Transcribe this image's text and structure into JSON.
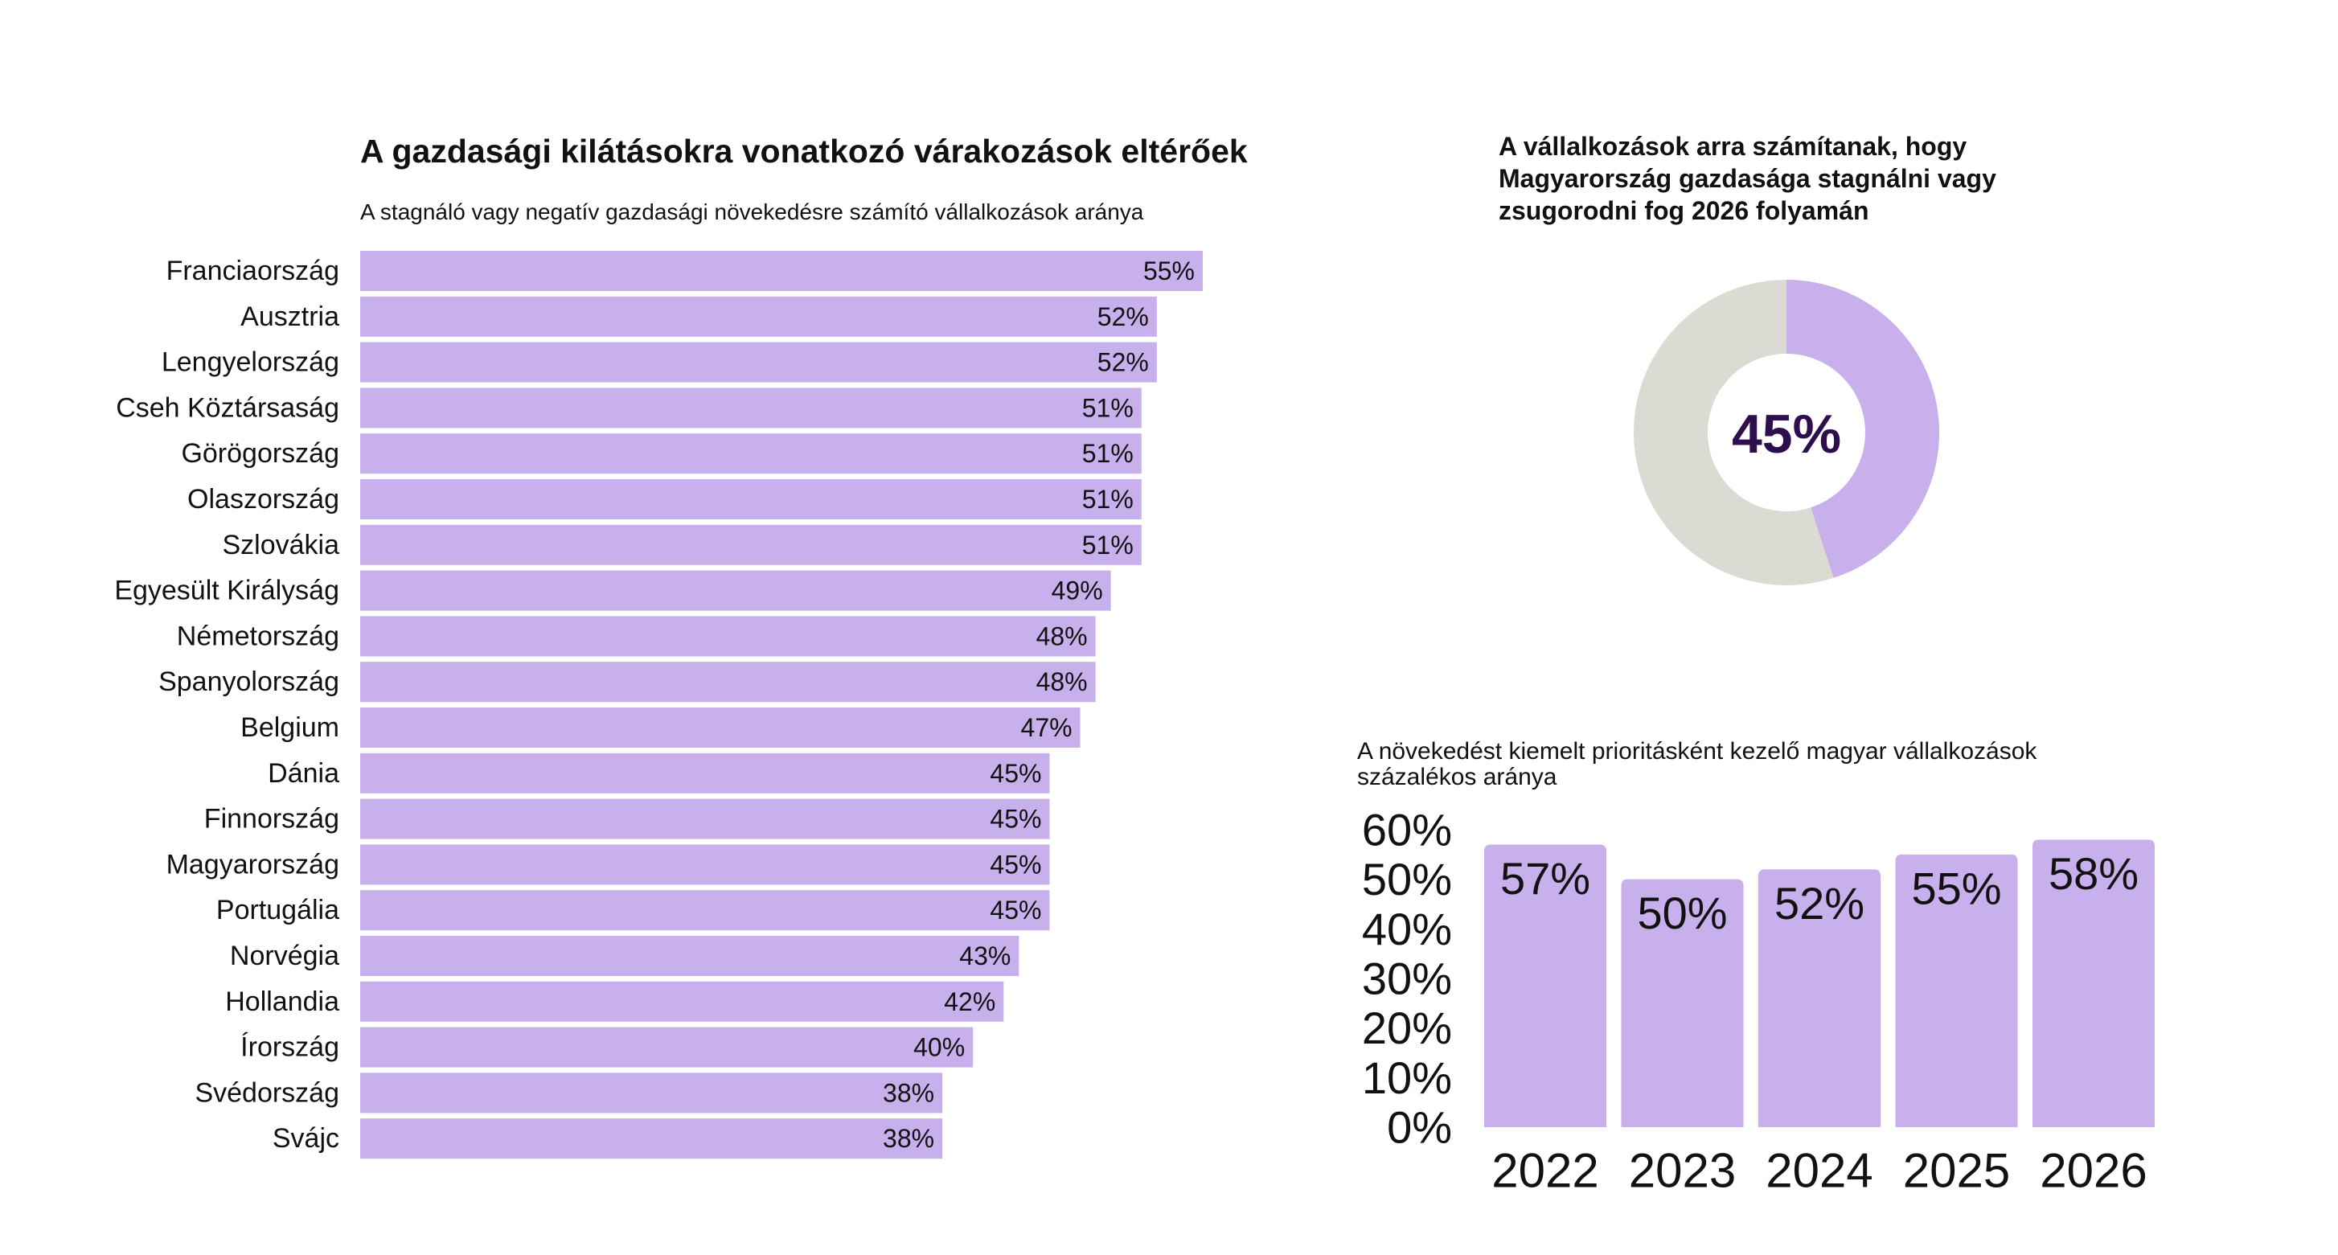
{
  "colors": {
    "bar": "#c8b0ec",
    "donut_rest": "#dcdbd3",
    "donut_text": "#2c0f4c",
    "text": "#111111"
  },
  "chart_data": [
    {
      "type": "bar",
      "orientation": "horizontal",
      "title": "A gazdasági kilátásokra vonatkozó várakozások eltérőek",
      "subtitle": "A stagnáló vagy negatív gazdasági növekedésre számító vállalkozások aránya",
      "unit": "%",
      "xlim": [
        0,
        55
      ],
      "categories": [
        "Franciaország",
        "Ausztria",
        "Lengyelország",
        "Cseh Köztársaság",
        "Görögország",
        "Olaszország",
        "Szlovákia",
        "Egyesült Királyság",
        "Németország",
        "Spanyolország",
        "Belgium",
        "Dánia",
        "Finnország",
        "Magyarország",
        "Portugália",
        "Norvégia",
        "Hollandia",
        "Írország",
        "Svédország",
        "Svájc"
      ],
      "values": [
        55,
        52,
        52,
        51,
        51,
        51,
        51,
        49,
        48,
        48,
        47,
        45,
        45,
        45,
        45,
        43,
        42,
        40,
        38,
        38
      ],
      "labels": [
        "55%",
        "52%",
        "52%",
        "51%",
        "51%",
        "51%",
        "51%",
        "49%",
        "48%",
        "48%",
        "47%",
        "45%",
        "45%",
        "45%",
        "45%",
        "43%",
        "42%",
        "40%",
        "38%",
        "38%"
      ]
    },
    {
      "type": "pie",
      "style": "donut",
      "title_lines": [
        "A vállalkozások arra számítanak, hogy",
        "Magyarország gazdasága stagnálni vagy",
        "zsugorodni fog 2026 folyamán"
      ],
      "value": 45,
      "center_label": "45%"
    },
    {
      "type": "bar",
      "orientation": "vertical",
      "title_lines": [
        "A növekedést kiemelt prioritásként kezelő magyar vállalkozások",
        "százalékos aránya"
      ],
      "categories": [
        "2022",
        "2023",
        "2024",
        "2025",
        "2026"
      ],
      "values": [
        57,
        50,
        52,
        55,
        58
      ],
      "labels": [
        "57%",
        "50%",
        "52%",
        "55%",
        "58%"
      ],
      "ylim": [
        0,
        60
      ],
      "yticks": [
        "60%",
        "50%",
        "40%",
        "30%",
        "20%",
        "10%",
        "0%"
      ]
    }
  ]
}
